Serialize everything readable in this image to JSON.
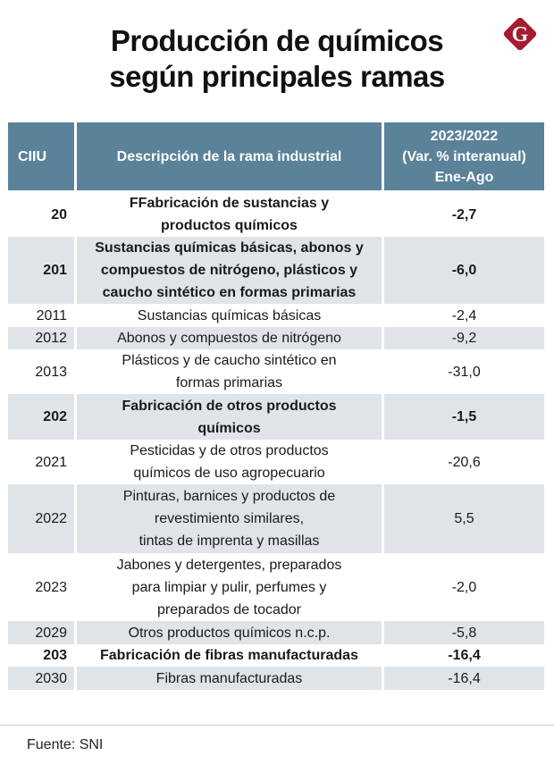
{
  "title": {
    "line1": "Producción de químicos",
    "line2": "según principales ramas"
  },
  "logo": {
    "icon": "g-logo-icon",
    "letter": "G",
    "color": "#a51c30"
  },
  "colors": {
    "header_bg": "#5a8299",
    "shaded_row": "#dfe4e8"
  },
  "table": {
    "headers": {
      "ciiu": "CIIU",
      "description": "Descripción de la rama industrial",
      "variation_line1": "2023/2022",
      "variation_line2": "(Var. % interanual)",
      "variation_line3": "Ene-Ago"
    },
    "rows": [
      {
        "ciiu": "20",
        "description": [
          "FFabricación de sustancias y",
          "productos químicos"
        ],
        "value": "-2,7",
        "bold": true
      },
      {
        "ciiu": "201",
        "description": [
          "Sustancias químicas básicas, abonos y",
          "compuestos de nitrógeno, plásticos y",
          "caucho sintético en formas primarias"
        ],
        "value": "-6,0",
        "bold": true
      },
      {
        "ciiu": "2011",
        "description": [
          "Sustancias químicas básicas"
        ],
        "value": "-2,4",
        "bold": false
      },
      {
        "ciiu": "2012",
        "description": [
          "Abonos y compuestos de nitrógeno"
        ],
        "value": "-9,2",
        "bold": false
      },
      {
        "ciiu": "2013",
        "description": [
          "Plásticos y de caucho sintético en",
          "formas primarias"
        ],
        "value": "-31,0",
        "bold": false
      },
      {
        "ciiu": "202",
        "description": [
          "Fabricación de otros productos",
          "químicos"
        ],
        "value": "-1,5",
        "bold": true
      },
      {
        "ciiu": "2021",
        "description": [
          "Pesticidas y de otros productos",
          "químicos de uso agropecuario"
        ],
        "value": "-20,6",
        "bold": false
      },
      {
        "ciiu": "2022",
        "description": [
          "Pinturas, barnices y productos de",
          "revestimiento similares,",
          "tintas de imprenta y masillas"
        ],
        "value": "5,5",
        "bold": false
      },
      {
        "ciiu": "2023",
        "description": [
          "Jabones y detergentes, preparados",
          "para limpiar y pulir, perfumes y",
          "preparados de tocador"
        ],
        "value": "-2,0",
        "bold": false
      },
      {
        "ciiu": "2029",
        "description": [
          "Otros productos químicos n.c.p."
        ],
        "value": "-5,8",
        "bold": false
      },
      {
        "ciiu": "203",
        "description": [
          "Fabricación de fibras manufacturadas"
        ],
        "value": "-16,4",
        "bold": true
      },
      {
        "ciiu": "2030",
        "description": [
          "Fibras manufacturadas"
        ],
        "value": "-16,4",
        "bold": false
      }
    ]
  },
  "source": "Fuente: SNI"
}
